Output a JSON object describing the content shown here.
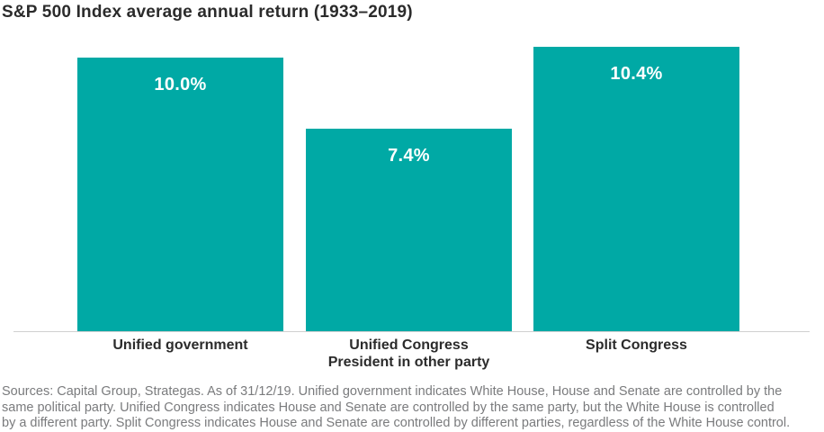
{
  "title": "S&P 500 Index average annual return (1933–2019)",
  "colors": {
    "bar": "#00a9a5",
    "title_text": "#2b2b2b",
    "category_label_text": "#2b2b2b",
    "value_label_text": "#ffffff",
    "axis_line": "#d0d0d0",
    "footnote_text": "#7a7b7d",
    "background": "#ffffff"
  },
  "chart_data": {
    "type": "bar",
    "title": "S&P 500 Index average annual return (1933–2019)",
    "categories": [
      {
        "lines": [
          "Unified government"
        ]
      },
      {
        "lines": [
          "Unified Congress",
          "President in other party"
        ]
      },
      {
        "lines": [
          "Split Congress"
        ]
      }
    ],
    "values": [
      10.0,
      7.4,
      10.4
    ],
    "value_labels": [
      "10.0%",
      "7.4%",
      "10.4%"
    ],
    "xlabel": "",
    "ylabel": "",
    "ylim": [
      0,
      10.4
    ],
    "grid": false,
    "legend": false,
    "bar_color": "#00a9a5",
    "baseline_axis": true
  },
  "footnote": {
    "lines": [
      "Sources: Capital Group, Strategas. As of 31/12/19. Unified government indicates White House, House and Senate are controlled by the",
      "same political party. Unified Congress indicates House and Senate are controlled by the same party, but the White House is controlled",
      "by a different party. Split Congress indicates House and Senate are controlled by different parties, regardless of the White House control."
    ]
  }
}
